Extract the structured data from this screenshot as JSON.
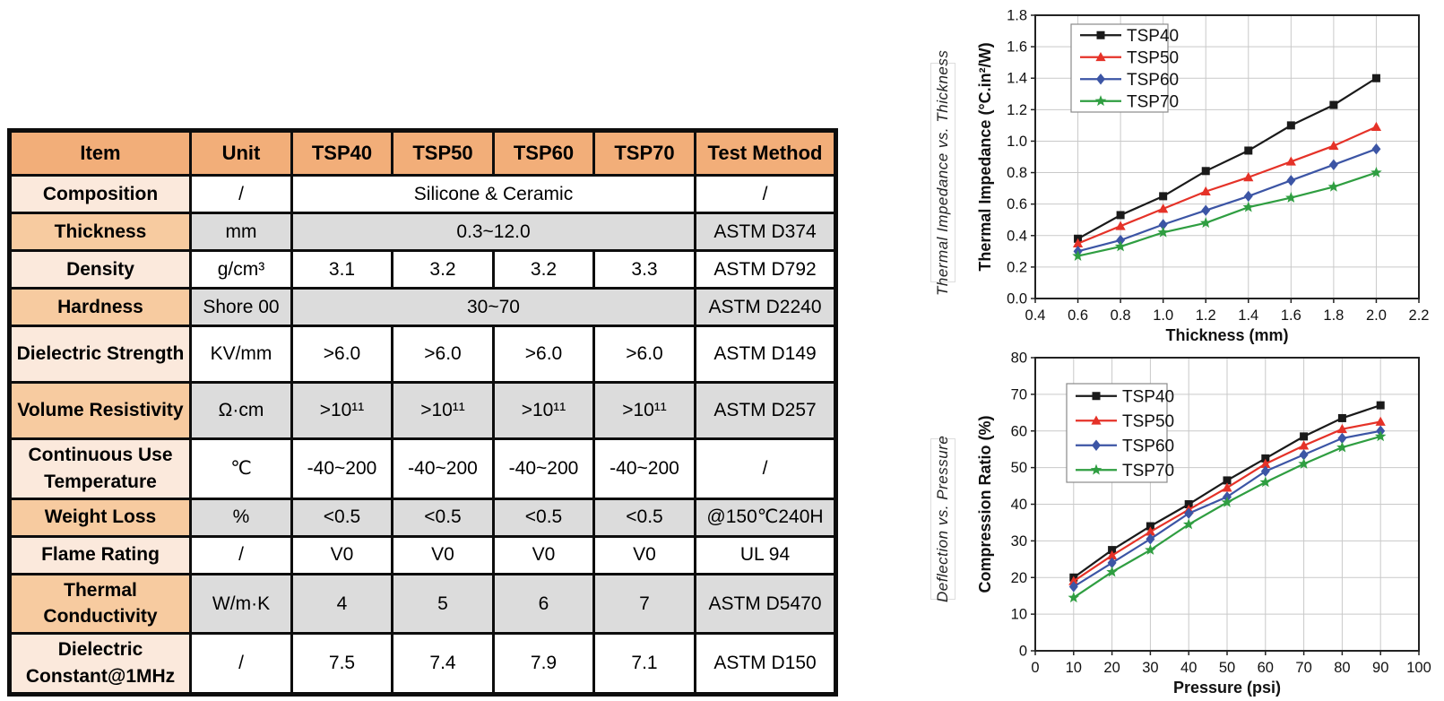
{
  "table": {
    "headers": [
      "Item",
      "Unit",
      "TSP40",
      "TSP50",
      "TSP60",
      "TSP70",
      "Test Method"
    ],
    "rows": [
      {
        "item": "Composition",
        "unit": "/",
        "merged": true,
        "values": [
          "Silicone & Ceramic"
        ],
        "test_method": "/"
      },
      {
        "item": "Thickness",
        "unit": "mm",
        "merged": true,
        "values": [
          "0.3~12.0"
        ],
        "test_method": "ASTM D374"
      },
      {
        "item": "Density",
        "unit": "g/cm³",
        "merged": false,
        "values": [
          "3.1",
          "3.2",
          "3.2",
          "3.3"
        ],
        "test_method": "ASTM D792"
      },
      {
        "item": "Hardness",
        "unit": "Shore 00",
        "merged": true,
        "values": [
          "30~70"
        ],
        "test_method": "ASTM D2240"
      },
      {
        "item": "Dielectric Strength",
        "unit": "KV/mm",
        "merged": false,
        "values": [
          ">6.0",
          ">6.0",
          ">6.0",
          ">6.0"
        ],
        "test_method": "ASTM D149"
      },
      {
        "item": "Volume Resistivity",
        "unit": "Ω·cm",
        "merged": false,
        "values": [
          ">10¹¹",
          ">10¹¹",
          ">10¹¹",
          ">10¹¹"
        ],
        "test_method": "ASTM D257"
      },
      {
        "item": "Continuous Use Temperature",
        "unit": "℃",
        "merged": false,
        "values": [
          "-40~200",
          "-40~200",
          "-40~200",
          "-40~200"
        ],
        "test_method": "/"
      },
      {
        "item": "Weight Loss",
        "unit": "%",
        "merged": false,
        "values": [
          "<0.5",
          "<0.5",
          "<0.5",
          "<0.5"
        ],
        "test_method": "@150℃240H"
      },
      {
        "item": "Flame Rating",
        "unit": "/",
        "merged": false,
        "values": [
          "V0",
          "V0",
          "V0",
          "V0"
        ],
        "test_method": "UL 94"
      },
      {
        "item": "Thermal Conductivity",
        "unit": "W/m·K",
        "merged": false,
        "values": [
          "4",
          "5",
          "6",
          "7"
        ],
        "test_method": "ASTM D5470"
      },
      {
        "item": "Dielectric Constant@1MHz",
        "unit": "/",
        "merged": false,
        "values": [
          "7.5",
          "7.4",
          "7.9",
          "7.1"
        ],
        "test_method": "ASTM D150"
      }
    ],
    "colors": {
      "header_bg": "#F2AE79",
      "item_odd": "#FBE9DC",
      "item_even": "#F7CBA0",
      "cell_shaded": "#DCDCDC",
      "border": "#0d0d0d"
    }
  },
  "side_labels": {
    "top": "Thermal Impedance vs. Thickness",
    "bottom": "Deflection vs. Pressure"
  },
  "chart_data": [
    {
      "type": "line",
      "title": "Thermal Impedance vs. Thickness",
      "xlabel": "Thickness (mm)",
      "ylabel": "Thermal Impedance (°C.in²/W)",
      "xlim": [
        0.4,
        2.2
      ],
      "ylim": [
        0.0,
        1.8
      ],
      "xtick_step": 0.2,
      "ytick_step": 0.2,
      "x_decimals": 1,
      "y_decimals": 1,
      "grid": true,
      "legend_position": "top-left",
      "x": [
        0.6,
        0.8,
        1.0,
        1.2,
        1.4,
        1.6,
        1.8,
        2.0
      ],
      "series": [
        {
          "name": "TSP40",
          "color": "#1A1A1A",
          "marker": "square",
          "values": [
            0.38,
            0.53,
            0.65,
            0.81,
            0.94,
            1.1,
            1.23,
            1.4
          ]
        },
        {
          "name": "TSP50",
          "color": "#E53228",
          "marker": "triangle",
          "values": [
            0.35,
            0.46,
            0.57,
            0.68,
            0.77,
            0.87,
            0.97,
            1.09
          ]
        },
        {
          "name": "TSP60",
          "color": "#3C55A5",
          "marker": "diamond",
          "values": [
            0.3,
            0.37,
            0.47,
            0.56,
            0.65,
            0.75,
            0.85,
            0.95
          ]
        },
        {
          "name": "TSP70",
          "color": "#2F9E41",
          "marker": "star",
          "values": [
            0.27,
            0.33,
            0.42,
            0.48,
            0.58,
            0.64,
            0.71,
            0.8
          ]
        }
      ]
    },
    {
      "type": "line",
      "title": "Deflection vs. Pressure",
      "xlabel": "Pressure (psi)",
      "ylabel": "Compression Ratio (%)",
      "xlim": [
        0,
        100
      ],
      "ylim": [
        0,
        80
      ],
      "xtick_step": 10,
      "ytick_step": 10,
      "x_decimals": 0,
      "y_decimals": 0,
      "grid": true,
      "legend_position": "top-left",
      "x": [
        10,
        20,
        30,
        40,
        50,
        60,
        70,
        80,
        90
      ],
      "series": [
        {
          "name": "TSP40",
          "color": "#1A1A1A",
          "marker": "square",
          "values": [
            20.0,
            27.5,
            34.0,
            40.0,
            46.5,
            52.5,
            58.5,
            63.5,
            67.0
          ]
        },
        {
          "name": "TSP50",
          "color": "#E53228",
          "marker": "triangle",
          "values": [
            19.0,
            26.0,
            32.5,
            38.5,
            44.5,
            51.0,
            56.0,
            60.5,
            62.5
          ]
        },
        {
          "name": "TSP60",
          "color": "#3C55A5",
          "marker": "diamond",
          "values": [
            17.5,
            24.0,
            30.5,
            37.5,
            42.0,
            49.0,
            53.5,
            58.0,
            60.0
          ]
        },
        {
          "name": "TSP70",
          "color": "#2F9E41",
          "marker": "star",
          "values": [
            14.5,
            21.5,
            27.5,
            34.5,
            40.5,
            46.0,
            51.0,
            55.5,
            58.5
          ]
        }
      ]
    }
  ]
}
